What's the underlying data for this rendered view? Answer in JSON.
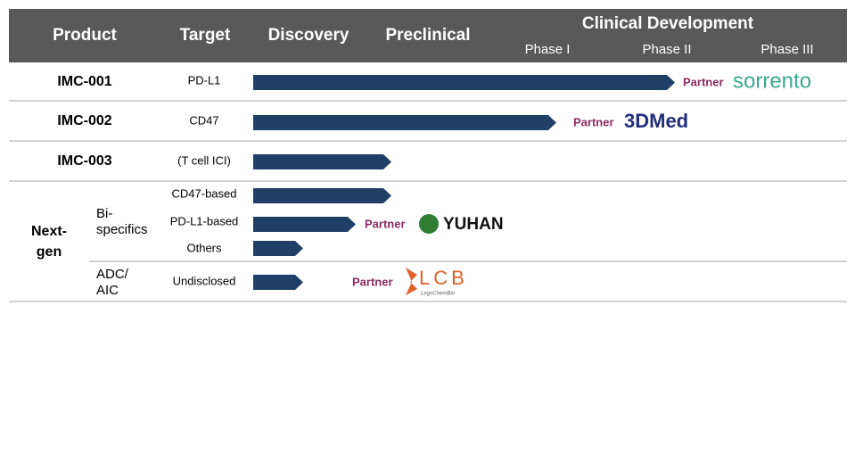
{
  "header": {
    "product": "Product",
    "target": "Target",
    "discovery": "Discovery",
    "preclinical": "Preclinical",
    "clinical_development": "Clinical Development",
    "phases": [
      "Phase I",
      "Phase II",
      "Phase III"
    ]
  },
  "rows": [
    {
      "product": "IMC-001",
      "target": "PD-L1",
      "partner": "Partner",
      "partner_logo": "sorrento"
    },
    {
      "product": "IMC-002",
      "target": "CD47",
      "partner": "Partner",
      "partner_logo": "3DMed"
    },
    {
      "product": "IMC-003",
      "target": "(T cell ICI)"
    }
  ],
  "next_gen": {
    "label": [
      "Next-",
      "gen"
    ],
    "groups": [
      {
        "label": [
          "Bi-",
          "specifics"
        ],
        "items": [
          {
            "target": "CD47-based"
          },
          {
            "target": "PD-L1-based",
            "partner": "Partner",
            "partner_logo": "YUHAN"
          },
          {
            "target": "Others"
          }
        ]
      },
      {
        "label": [
          "ADC/",
          "AIC"
        ],
        "items": [
          {
            "target": "Undisclosed",
            "partner": "Partner",
            "partner_logo": "LCB",
            "partner_logo_sub": "LegoChemBio"
          }
        ]
      }
    ]
  }
}
